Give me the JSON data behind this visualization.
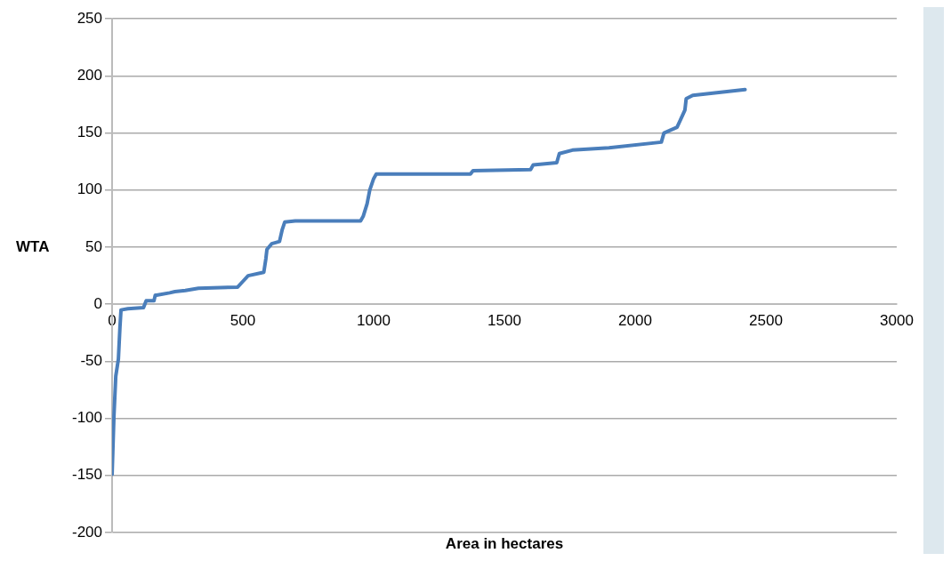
{
  "chart_data": {
    "type": "line",
    "xlabel": "Area in hectares",
    "ylabel": "WTA",
    "x": [
      0,
      7,
      14,
      24,
      30,
      34,
      60,
      120,
      125,
      130,
      160,
      165,
      170,
      220,
      240,
      280,
      330,
      480,
      500,
      520,
      580,
      588,
      592,
      610,
      640,
      650,
      660,
      700,
      950,
      960,
      975,
      985,
      1000,
      1010,
      1370,
      1380,
      1600,
      1610,
      1700,
      1710,
      1760,
      1900,
      2100,
      2110,
      2160,
      2180,
      2190,
      2195,
      2220,
      2420
    ],
    "values": [
      -149,
      -98,
      -63,
      -48,
      -20,
      -5,
      -4,
      -3,
      0,
      3,
      3,
      8,
      8,
      10,
      11,
      12,
      14,
      15,
      20,
      25,
      28,
      40,
      48,
      53,
      55,
      65,
      72,
      73,
      73,
      77,
      88,
      100,
      110,
      114,
      114,
      117,
      118,
      122,
      124,
      132,
      135,
      137,
      142,
      150,
      155,
      165,
      170,
      180,
      183,
      188
    ],
    "color": "#4a7ebb",
    "xlim": [
      0,
      3000
    ],
    "xticks": [
      0,
      500,
      1000,
      1500,
      2000,
      2500,
      3000
    ],
    "ylim": [
      -200,
      250
    ],
    "yticks": [
      -200,
      -150,
      -100,
      -50,
      0,
      50,
      100,
      150,
      200,
      250
    ],
    "grid": "y",
    "marker": "none",
    "line_style": "solid",
    "legend": false
  }
}
